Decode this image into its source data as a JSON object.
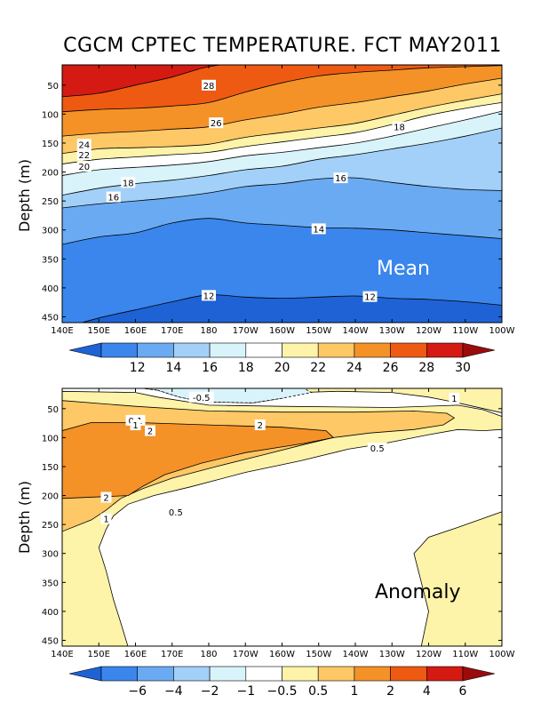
{
  "title": "CGCM CPTEC TEMPERATURE. FCT MAY2011",
  "chart_data": [
    {
      "type": "heatmap",
      "name": "mean",
      "panel_label": "Mean",
      "ylabel": "Depth (m)",
      "x_ticks": [
        "140E",
        "150E",
        "160E",
        "170E",
        "180",
        "170W",
        "160W",
        "150W",
        "140W",
        "130W",
        "120W",
        "110W",
        "100W"
      ],
      "x_range_deg_east": [
        140,
        260
      ],
      "y_ticks": [
        50,
        100,
        150,
        200,
        250,
        300,
        350,
        400,
        450
      ],
      "ylim": [
        460,
        15
      ],
      "levels": [
        12,
        14,
        16,
        18,
        20,
        22,
        24,
        26,
        28,
        30
      ],
      "level_labels": [
        "12",
        "14",
        "16",
        "18",
        "20",
        "22",
        "24",
        "26",
        "28",
        "30"
      ],
      "colors": [
        "#1f62d6",
        "#3a86ec",
        "#6aaaf2",
        "#a2d0f8",
        "#d9f3fb",
        "#ffffff",
        "#fdf3a9",
        "#fdc865",
        "#f49227",
        "#ee5a12",
        "#d41a12",
        "#9a0c0c"
      ],
      "contour_depths": {
        "x": [
          140,
          150,
          160,
          170,
          180,
          190,
          200,
          210,
          220,
          230,
          240,
          250,
          260
        ],
        "c12": [
          470,
          452,
          438,
          424,
          412,
          416,
          418,
          416,
          414,
          418,
          420,
          424,
          430
        ],
        "c14": [
          325,
          312,
          305,
          288,
          280,
          288,
          292,
          296,
          297,
          300,
          305,
          310,
          315
        ],
        "c16": [
          262,
          255,
          250,
          244,
          236,
          225,
          220,
          212,
          210,
          218,
          225,
          230,
          232
        ],
        "c18": [
          240,
          228,
          220,
          214,
          206,
          196,
          190,
          178,
          170,
          160,
          150,
          138,
          124
        ],
        "c20": [
          206,
          196,
          192,
          188,
          182,
          172,
          166,
          158,
          150,
          138,
          124,
          110,
          95
        ],
        "c22": [
          186,
          178,
          174,
          170,
          166,
          156,
          148,
          140,
          132,
          118,
          102,
          90,
          80
        ],
        "c24": [
          168,
          160,
          158,
          156,
          152,
          140,
          132,
          124,
          116,
          102,
          88,
          76,
          65
        ],
        "c26": [
          138,
          133,
          130,
          126,
          122,
          110,
          100,
          88,
          80,
          70,
          60,
          48,
          38
        ],
        "c28": [
          96,
          92,
          90,
          86,
          80,
          62,
          46,
          34,
          28,
          24,
          20,
          18,
          16
        ],
        "c30": [
          70,
          64,
          50,
          36,
          18,
          12,
          12,
          12,
          12,
          12,
          12,
          12,
          12
        ]
      },
      "contour_labels": [
        {
          "text": "28",
          "x": 180,
          "y": 50
        },
        {
          "text": "26",
          "x": 182,
          "y": 115
        },
        {
          "text": "24",
          "x": 146,
          "y": 152
        },
        {
          "text": "22",
          "x": 146,
          "y": 170
        },
        {
          "text": "20",
          "x": 146,
          "y": 190
        },
        {
          "text": "18",
          "x": 158,
          "y": 218
        },
        {
          "text": "16",
          "x": 154,
          "y": 243
        },
        {
          "text": "18",
          "x": 232,
          "y": 122
        },
        {
          "text": "16",
          "x": 216,
          "y": 210
        },
        {
          "text": "14",
          "x": 210,
          "y": 298
        },
        {
          "text": "12",
          "x": 180,
          "y": 413
        },
        {
          "text": "12",
          "x": 224,
          "y": 415
        }
      ]
    },
    {
      "type": "heatmap",
      "name": "anomaly",
      "panel_label": "Anomaly",
      "ylabel": "Depth (m)",
      "x_ticks": [
        "140E",
        "150E",
        "160E",
        "170E",
        "180",
        "170W",
        "160W",
        "150W",
        "140W",
        "130W",
        "120W",
        "110W",
        "100W"
      ],
      "x_range_deg_east": [
        140,
        260
      ],
      "y_ticks": [
        50,
        100,
        150,
        200,
        250,
        300,
        350,
        400,
        450
      ],
      "ylim": [
        460,
        15
      ],
      "levels": [
        -6,
        -4,
        -2,
        -1,
        -0.5,
        0.5,
        1,
        2,
        4,
        6
      ],
      "level_labels": [
        "−6",
        "−4",
        "−2",
        "−1",
        "−0.5",
        "0.5",
        "1",
        "2",
        "4",
        "6"
      ],
      "colors": [
        "#1f62d6",
        "#3a86ec",
        "#6aaaf2",
        "#a2d0f8",
        "#d9f3fb",
        "#ffffff",
        "#fdf3a9",
        "#fdc865",
        "#f49227",
        "#ee5a12",
        "#d41a12",
        "#9a0c0c"
      ],
      "regions": {
        "neg_0_5": [
          [
            166,
            18
          ],
          [
            172,
            30
          ],
          [
            178,
            38
          ],
          [
            192,
            40
          ],
          [
            200,
            32
          ],
          [
            208,
            22
          ],
          [
            206,
            15
          ],
          [
            162,
            15
          ]
        ],
        "pos_0_5_west": [
          [
            140,
            460
          ],
          [
            140,
            15
          ],
          [
            162,
            15
          ],
          [
            160,
            28
          ],
          [
            150,
            40
          ],
          [
            140,
            40
          ],
          [
            140,
            270
          ],
          [
            152,
            258
          ],
          [
            160,
            240
          ],
          [
            178,
            218
          ],
          [
            200,
            200
          ],
          [
            214,
            185
          ],
          [
            228,
            165
          ],
          [
            238,
            130
          ],
          [
            248,
            100
          ],
          [
            252,
            72
          ],
          [
            260,
            78
          ],
          [
            260,
            15
          ],
          [
            262,
            15
          ],
          [
            262,
            460
          ],
          [
            260,
            460
          ],
          [
            252,
            460
          ],
          [
            246,
            420
          ],
          [
            242,
            380
          ],
          [
            238,
            340
          ],
          [
            238,
            300
          ],
          [
            244,
            268
          ],
          [
            255,
            250
          ],
          [
            260,
            230
          ],
          [
            260,
            460
          ],
          [
            160,
            460
          ],
          [
            158,
            410
          ],
          [
            156,
            370
          ],
          [
            154,
            330
          ],
          [
            152,
            300
          ],
          [
            150,
            275
          ]
        ],
        "pos_1": [
          [
            140,
            28
          ],
          [
            150,
            34
          ],
          [
            160,
            45
          ],
          [
            180,
            46
          ],
          [
            200,
            46
          ],
          [
            220,
            48
          ],
          [
            240,
            50
          ],
          [
            244,
            58
          ],
          [
            244,
            80
          ],
          [
            236,
            90
          ],
          [
            226,
            96
          ],
          [
            216,
            104
          ],
          [
            210,
            112
          ],
          [
            200,
            132
          ],
          [
            184,
            158
          ],
          [
            174,
            176
          ],
          [
            164,
            200
          ],
          [
            156,
            220
          ],
          [
            150,
            245
          ],
          [
            140,
            262
          ]
        ],
        "pos_2": [
          [
            140,
            90
          ],
          [
            146,
            76
          ],
          [
            160,
            78
          ],
          [
            180,
            82
          ],
          [
            200,
            88
          ],
          [
            212,
            96
          ],
          [
            214,
            110
          ],
          [
            205,
            122
          ],
          [
            188,
            138
          ],
          [
            174,
            160
          ],
          [
            164,
            186
          ],
          [
            158,
            205
          ],
          [
            140,
            205
          ]
        ],
        "pos_4": [
          [
            140,
            140
          ],
          [
            142,
            100
          ],
          [
            150,
            88
          ],
          [
            164,
            90
          ],
          [
            180,
            92
          ],
          [
            196,
            98
          ],
          [
            206,
            104
          ],
          [
            204,
            112
          ],
          [
            192,
            120
          ],
          [
            180,
            134
          ],
          [
            170,
            156
          ],
          [
            162,
            182
          ],
          [
            158,
            200
          ],
          [
            140,
            202
          ]
        ],
        "pos_05_east": [
          [
            238,
            460
          ],
          [
            240,
            400
          ],
          [
            238,
            350
          ],
          [
            236,
            300
          ],
          [
            240,
            272
          ],
          [
            248,
            255
          ],
          [
            260,
            228
          ],
          [
            260,
            460
          ]
        ]
      },
      "contour_labels": [
        {
          "text": "-0.5",
          "x": 178,
          "y": 30
        },
        {
          "text": "0.1",
          "x": 160,
          "y": 70
        },
        {
          "text": "1",
          "x": 160,
          "y": 78
        },
        {
          "text": "2",
          "x": 164,
          "y": 88
        },
        {
          "text": "2",
          "x": 194,
          "y": 78
        },
        {
          "text": "1",
          "x": 247,
          "y": 32
        },
        {
          "text": "0.5",
          "x": 226,
          "y": 118
        },
        {
          "text": "2",
          "x": 152,
          "y": 203
        },
        {
          "text": "0.5",
          "x": 171,
          "y": 228
        },
        {
          "text": "1",
          "x": 152,
          "y": 240
        }
      ]
    }
  ]
}
